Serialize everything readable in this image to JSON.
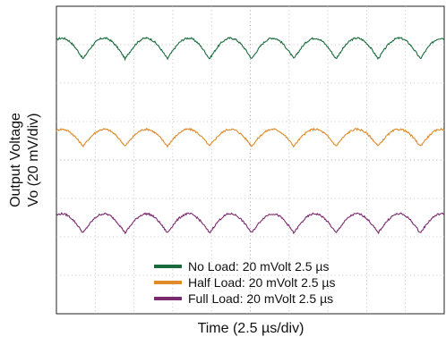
{
  "chart_data": {
    "type": "line",
    "xlabel": "Time (2.5 µs/div)",
    "ylabel_line1": "Output Voltage",
    "ylabel_line2": "Vo  (20 mV/div)",
    "x_divisions": 10,
    "y_divisions": 8,
    "xlim": [
      0,
      10
    ],
    "ylim": [
      0,
      8
    ],
    "grid": true,
    "grid_style": "dotted",
    "legend_position": "bottom-center",
    "series": [
      {
        "name": "No Load: 20 mVolt 2.5 µs",
        "color": "#1a6b3c",
        "center_div": 6.9,
        "amplitude_div": 0.27,
        "cycles": 9.2,
        "phase_div": 0.4
      },
      {
        "name": "Half Load: 20 mVolt 2.5 µs",
        "color": "#e08a2a",
        "center_div": 4.58,
        "amplitude_div": 0.22,
        "cycles": 9.2,
        "phase_div": 0.4
      },
      {
        "name": "Full Load: 20 mVolt 2.5 µs",
        "color": "#7a2a6e",
        "center_div": 2.35,
        "amplitude_div": 0.25,
        "cycles": 9.2,
        "phase_div": 0.4
      }
    ]
  }
}
